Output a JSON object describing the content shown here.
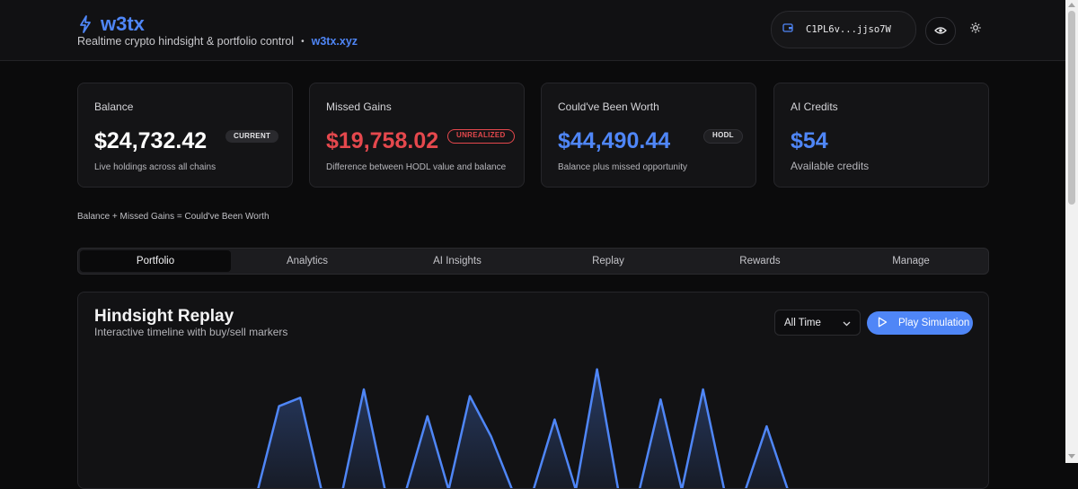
{
  "header": {
    "logo_icon": "lightning-icon",
    "app_name": "w3tx",
    "tagline": "Realtime crypto hindsight & portfolio control",
    "separator": "•",
    "domain": "w3tx.xyz",
    "wallet_icon": "wallet-icon",
    "wallet_address": "C1PL6v...jjso7W",
    "visibility_icon": "eye-icon",
    "theme_icon": "sun-icon",
    "accent_color": "#4f86f7"
  },
  "cards": [
    {
      "title": "Balance",
      "value": "$24,732.42",
      "badge": "CURRENT",
      "desc": "Live holdings across all chains",
      "value_color": "#ffffff"
    },
    {
      "title": "Missed Gains",
      "value": "$19,758.02",
      "badge": "UNREALIZED",
      "desc": "Difference between HODL value and balance",
      "value_color": "#e5484d"
    },
    {
      "title": "Could've Been Worth",
      "value": "$44,490.44",
      "badge": "HODL",
      "desc": "Balance plus missed opportunity",
      "value_color": "#4f86f7"
    },
    {
      "title": "AI Credits",
      "value": "$54",
      "badge": "",
      "desc": "Available credits",
      "value_color": "#4f86f7"
    }
  ],
  "formula": "Balance + Missed Gains = Could've Been Worth",
  "tabs": [
    {
      "label": "Portfolio",
      "active": true
    },
    {
      "label": "Analytics",
      "active": false
    },
    {
      "label": "AI Insights",
      "active": false
    },
    {
      "label": "Replay",
      "active": false
    },
    {
      "label": "Rewards",
      "active": false
    },
    {
      "label": "Manage",
      "active": false
    }
  ],
  "replay": {
    "title": "Hindsight Replay",
    "subtitle": "Interactive timeline with buy/sell markers",
    "range_selected": "All Time",
    "range_icon": "chevron-down-icon",
    "play_label": "Play Simulation",
    "play_icon": "play-icon"
  },
  "chart_data": {
    "type": "area",
    "series": [
      {
        "color": "#4f86f7",
        "points": [
          [
            0,
            0.0
          ],
          [
            1,
            0.5
          ],
          [
            2,
            0.55
          ],
          [
            3,
            0.0
          ],
          [
            4,
            0.0
          ],
          [
            5,
            0.6
          ],
          [
            6,
            0.0
          ],
          [
            7,
            0.0
          ],
          [
            8,
            0.44
          ],
          [
            9,
            0.0
          ],
          [
            10,
            0.56
          ],
          [
            11,
            0.32
          ],
          [
            12,
            0.0
          ],
          [
            13,
            0.0
          ],
          [
            14,
            0.42
          ],
          [
            15,
            0.0
          ],
          [
            16,
            0.72
          ],
          [
            17,
            0.0
          ],
          [
            18,
            0.0
          ],
          [
            19,
            0.54
          ],
          [
            20,
            0.0
          ],
          [
            21,
            0.6
          ],
          [
            22,
            0.0
          ],
          [
            23,
            0.0
          ],
          [
            24,
            0.38
          ],
          [
            25,
            0.0
          ]
        ]
      }
    ]
  }
}
